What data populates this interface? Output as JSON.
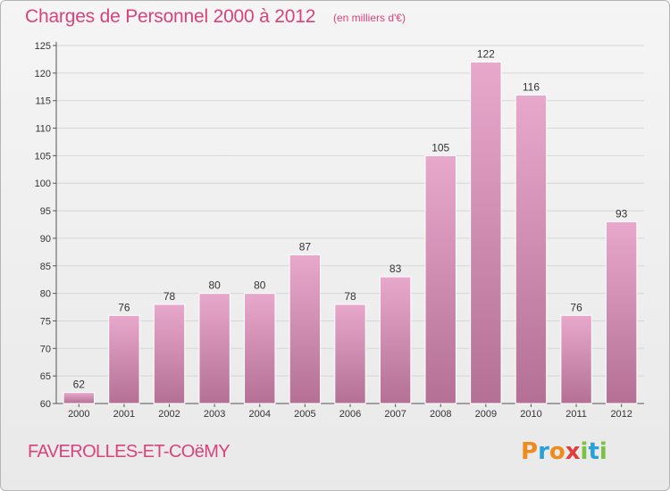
{
  "title": "Charges de Personnel 2000 à 2012",
  "subtitle": "(en milliers d'€)",
  "commune": "FAVEROLLES-ET-COëMY",
  "logo": {
    "letters": [
      "P",
      "r",
      "o",
      "x",
      "i",
      "t",
      "i"
    ],
    "colors": [
      "#f08a1c",
      "#2aa0d8",
      "#f08a1c",
      "#e23c3c",
      "#7bc043",
      "#2aa0d8",
      "#7bc043"
    ]
  },
  "colors": {
    "bar_top": "#e8a8cc",
    "bar_bottom": "#b47095",
    "title": "#d8437a",
    "grid": "#d6d6d6"
  },
  "chart_data": {
    "type": "bar",
    "title": "Charges de Personnel 2000 à 2012",
    "subtitle": "(en milliers d'€)",
    "categories": [
      "2000",
      "2001",
      "2002",
      "2003",
      "2004",
      "2005",
      "2006",
      "2007",
      "2008",
      "2009",
      "2010",
      "2011",
      "2012"
    ],
    "values": [
      62,
      76,
      78,
      80,
      80,
      87,
      78,
      83,
      105,
      122,
      116,
      76,
      93
    ],
    "ylim": [
      60,
      125
    ],
    "yticks": [
      60,
      65,
      70,
      75,
      80,
      85,
      90,
      95,
      100,
      105,
      110,
      115,
      120,
      125
    ],
    "grid": true,
    "xlabel": "",
    "ylabel": ""
  }
}
